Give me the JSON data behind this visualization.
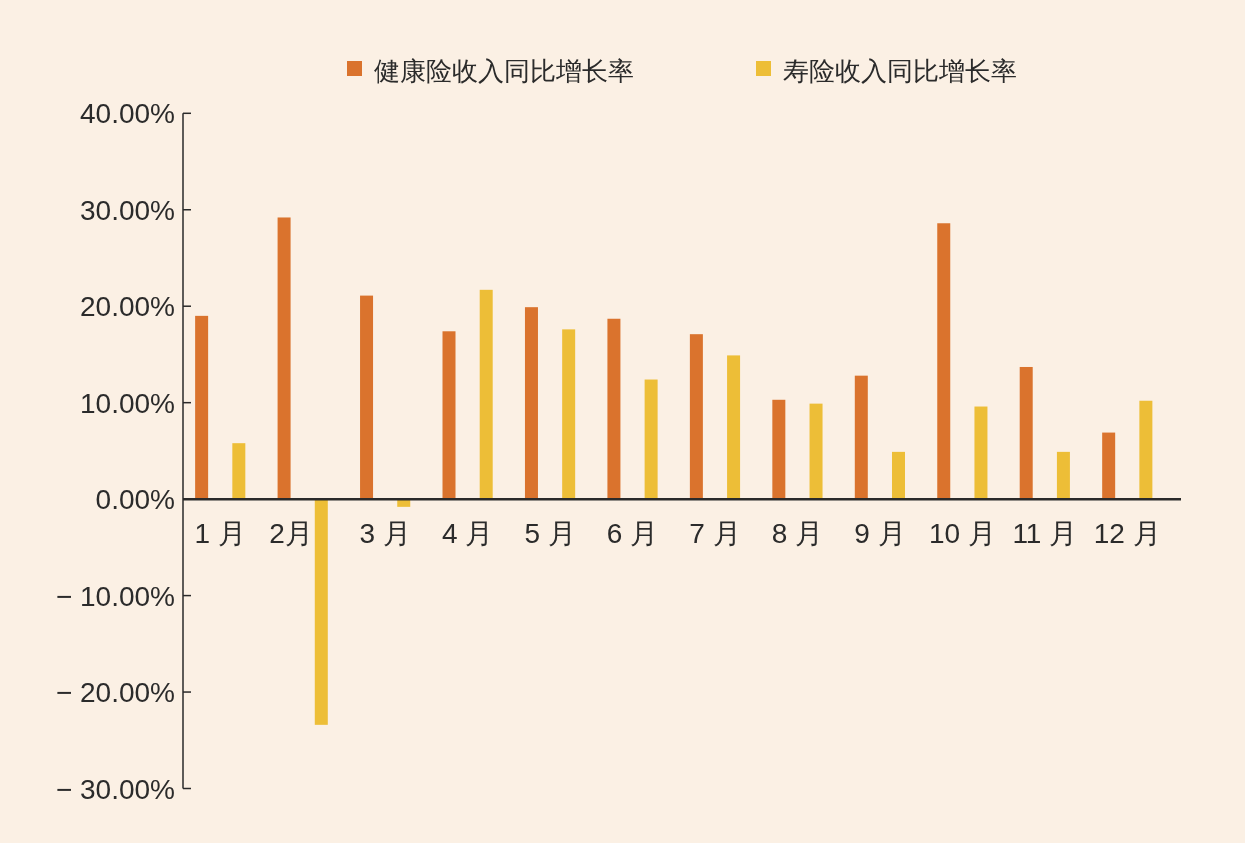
{
  "chart_data": {
    "type": "bar",
    "categories": [
      "1 月",
      "2月",
      "3 月",
      "4 月",
      "5 月",
      "6 月",
      "7 月",
      "8 月",
      "9 月",
      "10 月",
      "11 月",
      "12 月"
    ],
    "series": [
      {
        "name": "健康险收入同比增长率",
        "color": "#da732d",
        "values": [
          19.0,
          29.2,
          21.1,
          17.4,
          19.9,
          18.7,
          17.1,
          10.3,
          12.8,
          28.6,
          13.7,
          6.9
        ]
      },
      {
        "name": "寿险收入同比增长率",
        "color": "#edbe37",
        "values": [
          5.8,
          -23.4,
          -0.8,
          21.7,
          17.6,
          12.4,
          14.9,
          9.9,
          4.9,
          9.6,
          4.9,
          10.2
        ]
      }
    ],
    "ylim": [
      -30,
      40
    ],
    "yticks": [
      {
        "value": -30,
        "label": "− 30.00%"
      },
      {
        "value": -20,
        "label": "− 20.00%"
      },
      {
        "value": -10,
        "label": "− 10.00%"
      },
      {
        "value": 0,
        "label": "0.00%"
      },
      {
        "value": 10,
        "label": "10.00%"
      },
      {
        "value": 20,
        "label": "20.00%"
      },
      {
        "value": 30,
        "label": "30.00%"
      },
      {
        "value": 40,
        "label": "40.00%"
      }
    ],
    "legend": "top"
  }
}
